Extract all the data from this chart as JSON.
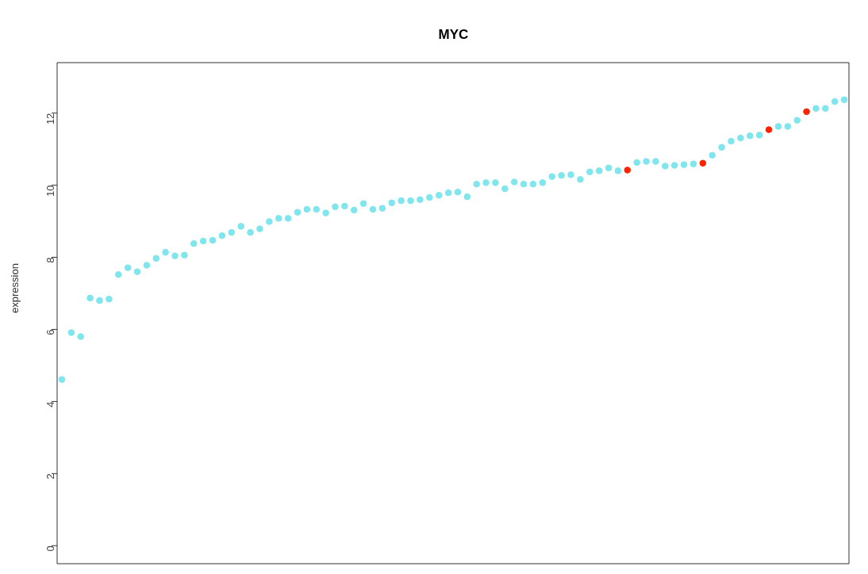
{
  "chart_data": {
    "type": "scatter",
    "title": "MYC",
    "ylabel": "expression",
    "categories": [
      null,
      null,
      null,
      null,
      null,
      null,
      null,
      null,
      null,
      null,
      null,
      null,
      null,
      null,
      null,
      null,
      null,
      null,
      null,
      null,
      null,
      null,
      null,
      null,
      null,
      null,
      null,
      null,
      null,
      null,
      null,
      null,
      null,
      null,
      null,
      null,
      null,
      null,
      null,
      null,
      null,
      null,
      null,
      null,
      null,
      null,
      null,
      null,
      null,
      null,
      null,
      null,
      null,
      null,
      null,
      null,
      null,
      null,
      null,
      null,
      null,
      null,
      null,
      null,
      null,
      null,
      null,
      null,
      null,
      null,
      null,
      null,
      null,
      null,
      null,
      null,
      null,
      null,
      null,
      null,
      null,
      null,
      null,
      null
    ],
    "series": [
      {
        "color": "#7fe6ee",
        "values": [
          4.61,
          5.91,
          5.8,
          6.87,
          6.8,
          6.84,
          7.52,
          7.71,
          7.6,
          7.78,
          7.97,
          8.14,
          8.04,
          8.06,
          8.38,
          8.45,
          8.47,
          8.6,
          8.69,
          8.86,
          8.69,
          8.79,
          8.99,
          9.08,
          9.08,
          9.25,
          9.33,
          9.33,
          9.23,
          9.4,
          9.42,
          9.31,
          9.49,
          9.33,
          9.36,
          9.51,
          9.57,
          9.57,
          9.6,
          9.66,
          9.72,
          9.79,
          9.81,
          9.68,
          10.03,
          10.07,
          10.07,
          9.9,
          10.09,
          10.03,
          10.03,
          10.07,
          10.24,
          10.27,
          10.29,
          10.16,
          10.37,
          10.4,
          10.48,
          10.4,
          null,
          10.63,
          10.66,
          10.66,
          10.53,
          10.55,
          10.57,
          10.59,
          null,
          10.83,
          11.05,
          11.22,
          11.31,
          11.37,
          11.39,
          null,
          11.63,
          11.63,
          11.8,
          null,
          12.13,
          12.13,
          12.32,
          12.37
        ]
      },
      {
        "color": "#ff2200",
        "values": [
          null,
          null,
          null,
          null,
          null,
          null,
          null,
          null,
          null,
          null,
          null,
          null,
          null,
          null,
          null,
          null,
          null,
          null,
          null,
          null,
          null,
          null,
          null,
          null,
          null,
          null,
          null,
          null,
          null,
          null,
          null,
          null,
          null,
          null,
          null,
          null,
          null,
          null,
          null,
          null,
          null,
          null,
          null,
          null,
          null,
          null,
          null,
          null,
          null,
          null,
          null,
          null,
          null,
          null,
          null,
          null,
          null,
          null,
          null,
          null,
          10.42,
          null,
          null,
          null,
          null,
          null,
          null,
          null,
          10.61,
          null,
          null,
          null,
          null,
          null,
          null,
          11.54,
          null,
          null,
          null,
          12.04,
          null,
          null,
          null,
          null
        ]
      }
    ],
    "ylim": [
      -0.5,
      13.4
    ],
    "yticks": [
      0,
      2,
      4,
      6,
      8,
      10,
      12
    ],
    "tick_labels": "y",
    "grid": false,
    "marker": "circle"
  }
}
